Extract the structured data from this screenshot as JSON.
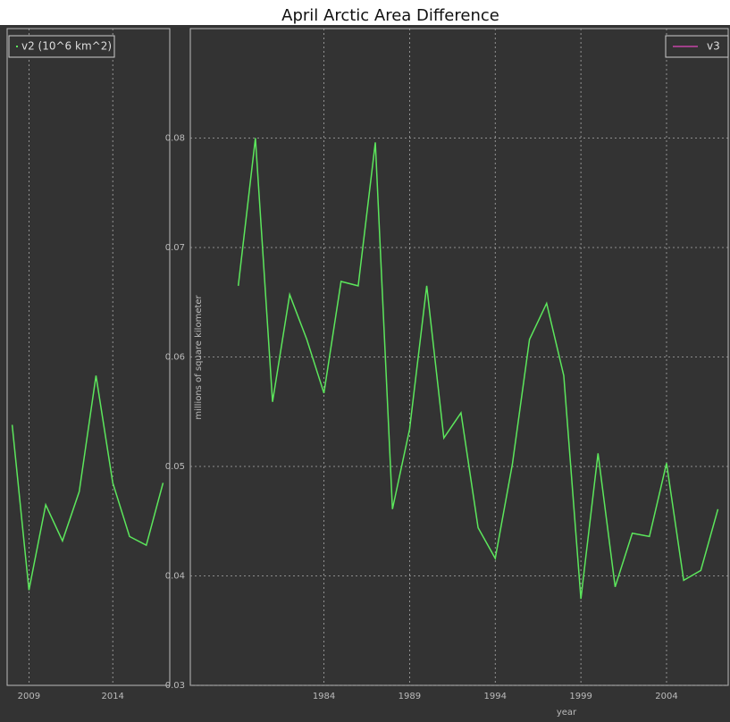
{
  "chart_data": [
    {
      "type": "line",
      "title": "April Arctic Area Difference",
      "xlabel": "year",
      "ylabel": "millions of square kilometer",
      "x": [
        1979,
        1980,
        1981,
        1982,
        1983,
        1984,
        1985,
        1986,
        1987,
        1988,
        1989,
        1990,
        1991,
        1992,
        1993,
        1994,
        1995,
        1996,
        1997,
        1998,
        1999,
        2000,
        2001,
        2002,
        2003,
        2004,
        2005,
        2006,
        2007
      ],
      "series": [
        {
          "name": "v3",
          "color": "#5ce65c",
          "legend_color": "#a0408a",
          "values": [
            0.0665,
            0.08,
            0.0559,
            0.0657,
            0.0616,
            0.0567,
            0.0669,
            0.0665,
            0.0796,
            0.0461,
            0.0534,
            0.0665,
            0.0526,
            0.0549,
            0.0444,
            0.0416,
            0.0502,
            0.0616,
            0.0649,
            0.0583,
            0.0379,
            0.0512,
            0.039,
            0.0439,
            0.0436,
            0.0503,
            0.0396,
            0.0405,
            0.0461
          ]
        }
      ],
      "xlim": [
        1976.2,
        2007.6
      ],
      "ylim": [
        0.03,
        0.09
      ],
      "xticks": [
        1984,
        1989,
        1994,
        1999,
        2004
      ],
      "yticks": [
        0.03,
        0.04,
        0.05,
        0.06,
        0.07,
        0.08
      ],
      "grid": true,
      "legend": "upper right"
    },
    {
      "type": "line",
      "x": [
        2008,
        2009,
        2010,
        2011,
        2012,
        2013,
        2014,
        2015,
        2016,
        2017
      ],
      "series": [
        {
          "name": "v2 (10^6 km^2)",
          "color": "#5ce65c",
          "values": [
            0.0538,
            0.0387,
            0.0465,
            0.0432,
            0.0477,
            0.0583,
            0.0485,
            0.0436,
            0.0428,
            0.0485
          ]
        }
      ],
      "xlim": [
        2007.7,
        2017.4
      ],
      "ylim": [
        0.03,
        0.09
      ],
      "xticks": [
        2009,
        2014
      ],
      "grid": true,
      "legend": "upper left"
    }
  ]
}
